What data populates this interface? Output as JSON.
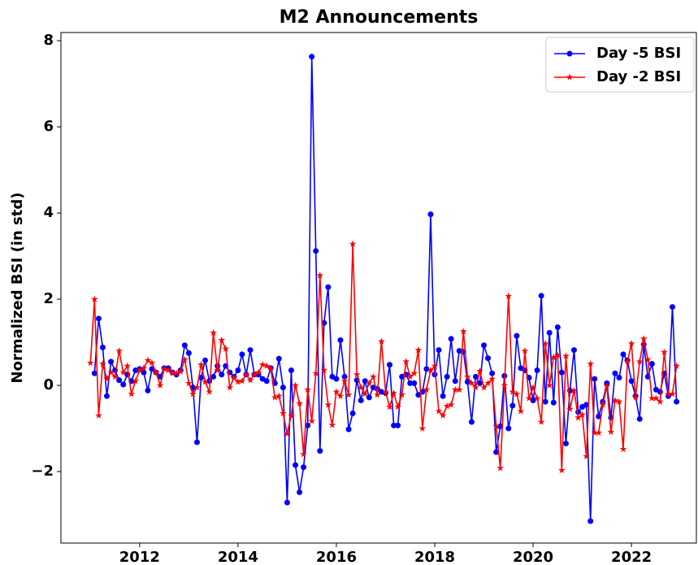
{
  "chart_data": {
    "type": "line",
    "title": "M2 Announcements",
    "y_label": "Normalized BSI (in std)",
    "x": [
      2011,
      2011.083,
      2011.167,
      2011.25,
      2011.333,
      2011.417,
      2011.5,
      2011.583,
      2011.667,
      2011.75,
      2011.833,
      2011.917,
      2012,
      2012.083,
      2012.167,
      2012.25,
      2012.333,
      2012.417,
      2012.5,
      2012.583,
      2012.667,
      2012.75,
      2012.833,
      2012.917,
      2013,
      2013.083,
      2013.167,
      2013.25,
      2013.333,
      2013.417,
      2013.5,
      2013.583,
      2013.667,
      2013.75,
      2013.833,
      2013.917,
      2014,
      2014.083,
      2014.167,
      2014.25,
      2014.333,
      2014.417,
      2014.5,
      2014.583,
      2014.667,
      2014.75,
      2014.833,
      2014.917,
      2015,
      2015.083,
      2015.167,
      2015.25,
      2015.333,
      2015.417,
      2015.5,
      2015.583,
      2015.667,
      2015.75,
      2015.833,
      2015.917,
      2016,
      2016.083,
      2016.167,
      2016.25,
      2016.333,
      2016.417,
      2016.5,
      2016.583,
      2016.667,
      2016.75,
      2016.833,
      2016.917,
      2017,
      2017.083,
      2017.167,
      2017.25,
      2017.333,
      2017.417,
      2017.5,
      2017.583,
      2017.667,
      2017.75,
      2017.833,
      2017.917,
      2018,
      2018.083,
      2018.167,
      2018.25,
      2018.333,
      2018.417,
      2018.5,
      2018.583,
      2018.667,
      2018.75,
      2018.833,
      2018.917,
      2019,
      2019.083,
      2019.167,
      2019.25,
      2019.333,
      2019.417,
      2019.5,
      2019.583,
      2019.667,
      2019.75,
      2019.833,
      2019.917,
      2020,
      2020.083,
      2020.167,
      2020.25,
      2020.333,
      2020.417,
      2020.5,
      2020.583,
      2020.667,
      2020.75,
      2020.833,
      2020.917,
      2021,
      2021.083,
      2021.167,
      2021.25,
      2021.333,
      2021.417,
      2021.5,
      2021.583,
      2021.667,
      2021.75,
      2021.833,
      2021.917,
      2022,
      2022.083,
      2022.167,
      2022.25,
      2022.333,
      2022.417,
      2022.5,
      2022.583,
      2022.667,
      2022.75,
      2022.833,
      2022.917
    ],
    "series": [
      {
        "name": "Day -5 BSI",
        "color": "#0000ff",
        "marker": "circle",
        "values": [
          null,
          0.28,
          1.55,
          0.88,
          -0.25,
          0.55,
          0.35,
          0.12,
          0.02,
          0.25,
          0.1,
          0.35,
          0.38,
          0.3,
          -0.12,
          0.38,
          0.3,
          0.2,
          0.4,
          0.4,
          0.3,
          0.25,
          0.35,
          0.93,
          0.75,
          -0.05,
          -1.32,
          0.18,
          0.58,
          0.1,
          0.2,
          0.45,
          0.25,
          0.45,
          0.3,
          0.2,
          0.35,
          0.72,
          0.25,
          0.82,
          0.25,
          0.25,
          0.15,
          0.1,
          0.4,
          0.05,
          0.62,
          -0.05,
          -2.72,
          0.35,
          -1.85,
          -2.48,
          -1.9,
          -0.93,
          7.63,
          3.12,
          -1.52,
          1.45,
          2.28,
          0.2,
          0.15,
          1.05,
          0.2,
          -1.02,
          -0.65,
          0.12,
          -0.35,
          0.1,
          -0.28,
          -0.05,
          -0.08,
          -0.15,
          -0.18,
          0.48,
          -0.93,
          -0.93,
          0.2,
          0.25,
          0.05,
          0.05,
          -0.22,
          -0.15,
          0.38,
          3.97,
          0.25,
          0.82,
          -0.25,
          0.2,
          1.08,
          0.1,
          0.8,
          0.78,
          0.08,
          -0.85,
          0.2,
          0.05,
          0.93,
          0.63,
          0.28,
          -1.55,
          -0.95,
          0.22,
          -1.0,
          -0.47,
          1.15,
          0.4,
          0.35,
          0.18,
          -0.35,
          0.35,
          2.08,
          -0.38,
          1.22,
          -0.4,
          1.35,
          0.3,
          -1.35,
          -0.12,
          0.82,
          -0.62,
          -0.5,
          -0.45,
          -3.15,
          0.15,
          -0.72,
          -0.38,
          0.05,
          -0.75,
          0.28,
          0.18,
          0.72,
          0.58,
          0.1,
          -0.25,
          -0.78,
          0.95,
          0.2,
          0.5,
          -0.1,
          -0.15,
          0.28,
          -0.25,
          1.82,
          -0.38
        ]
      },
      {
        "name": "Day -2 BSI",
        "color": "#ff0000",
        "marker": "star",
        "values": [
          0.52,
          2.0,
          -0.7,
          0.5,
          0.15,
          0.3,
          0.2,
          0.8,
          0.3,
          0.45,
          -0.2,
          0.1,
          0.35,
          0.4,
          0.58,
          0.52,
          0.3,
          0.0,
          0.38,
          0.35,
          0.28,
          0.28,
          0.32,
          0.6,
          0.05,
          -0.2,
          -0.05,
          0.48,
          0.08,
          -0.15,
          1.22,
          0.35,
          1.05,
          0.85,
          -0.05,
          0.18,
          0.08,
          0.1,
          0.25,
          0.12,
          0.25,
          0.3,
          0.48,
          0.45,
          0.38,
          -0.28,
          -0.25,
          -0.65,
          -1.12,
          -0.7,
          0.0,
          -0.42,
          -1.6,
          -0.1,
          -0.83,
          0.28,
          2.55,
          0.35,
          -0.45,
          -0.92,
          -0.15,
          -0.25,
          0.1,
          -0.22,
          3.28,
          0.25,
          -0.05,
          -0.2,
          0.05,
          0.2,
          -0.22,
          1.02,
          -0.15,
          -0.5,
          -0.18,
          -0.5,
          -0.22,
          0.55,
          0.2,
          0.28,
          0.82,
          -1.0,
          -0.1,
          0.35,
          0.45,
          -0.6,
          -0.7,
          -0.48,
          -0.45,
          -0.1,
          -0.1,
          1.25,
          0.2,
          0.05,
          -0.05,
          0.33,
          -0.05,
          0.05,
          0.15,
          -0.95,
          -1.92,
          0.0,
          2.07,
          -0.15,
          -0.2,
          -0.6,
          0.8,
          -0.3,
          -0.05,
          -0.3,
          -0.85,
          0.97,
          0.0,
          0.65,
          0.7,
          -1.97,
          0.68,
          -0.55,
          -0.12,
          -0.75,
          -0.68,
          -1.65,
          0.5,
          -1.1,
          -1.1,
          -0.45,
          -0.02,
          -1.08,
          -0.35,
          -0.38,
          -1.48,
          0.55,
          0.97,
          -0.28,
          0.55,
          1.08,
          0.6,
          -0.3,
          -0.3,
          -0.38,
          0.77,
          -0.2,
          -0.2,
          0.45
        ]
      }
    ],
    "xlim": [
      2010.4,
      2023.32
    ],
    "xticks": [
      2012,
      2014,
      2016,
      2018,
      2020,
      2022
    ],
    "ylim": [
      -3.66,
      8.19
    ],
    "yticks": [
      {
        "value": -2,
        "label": "−2"
      },
      0,
      2,
      4,
      6,
      8
    ],
    "grid": false,
    "legend": "upper right"
  }
}
